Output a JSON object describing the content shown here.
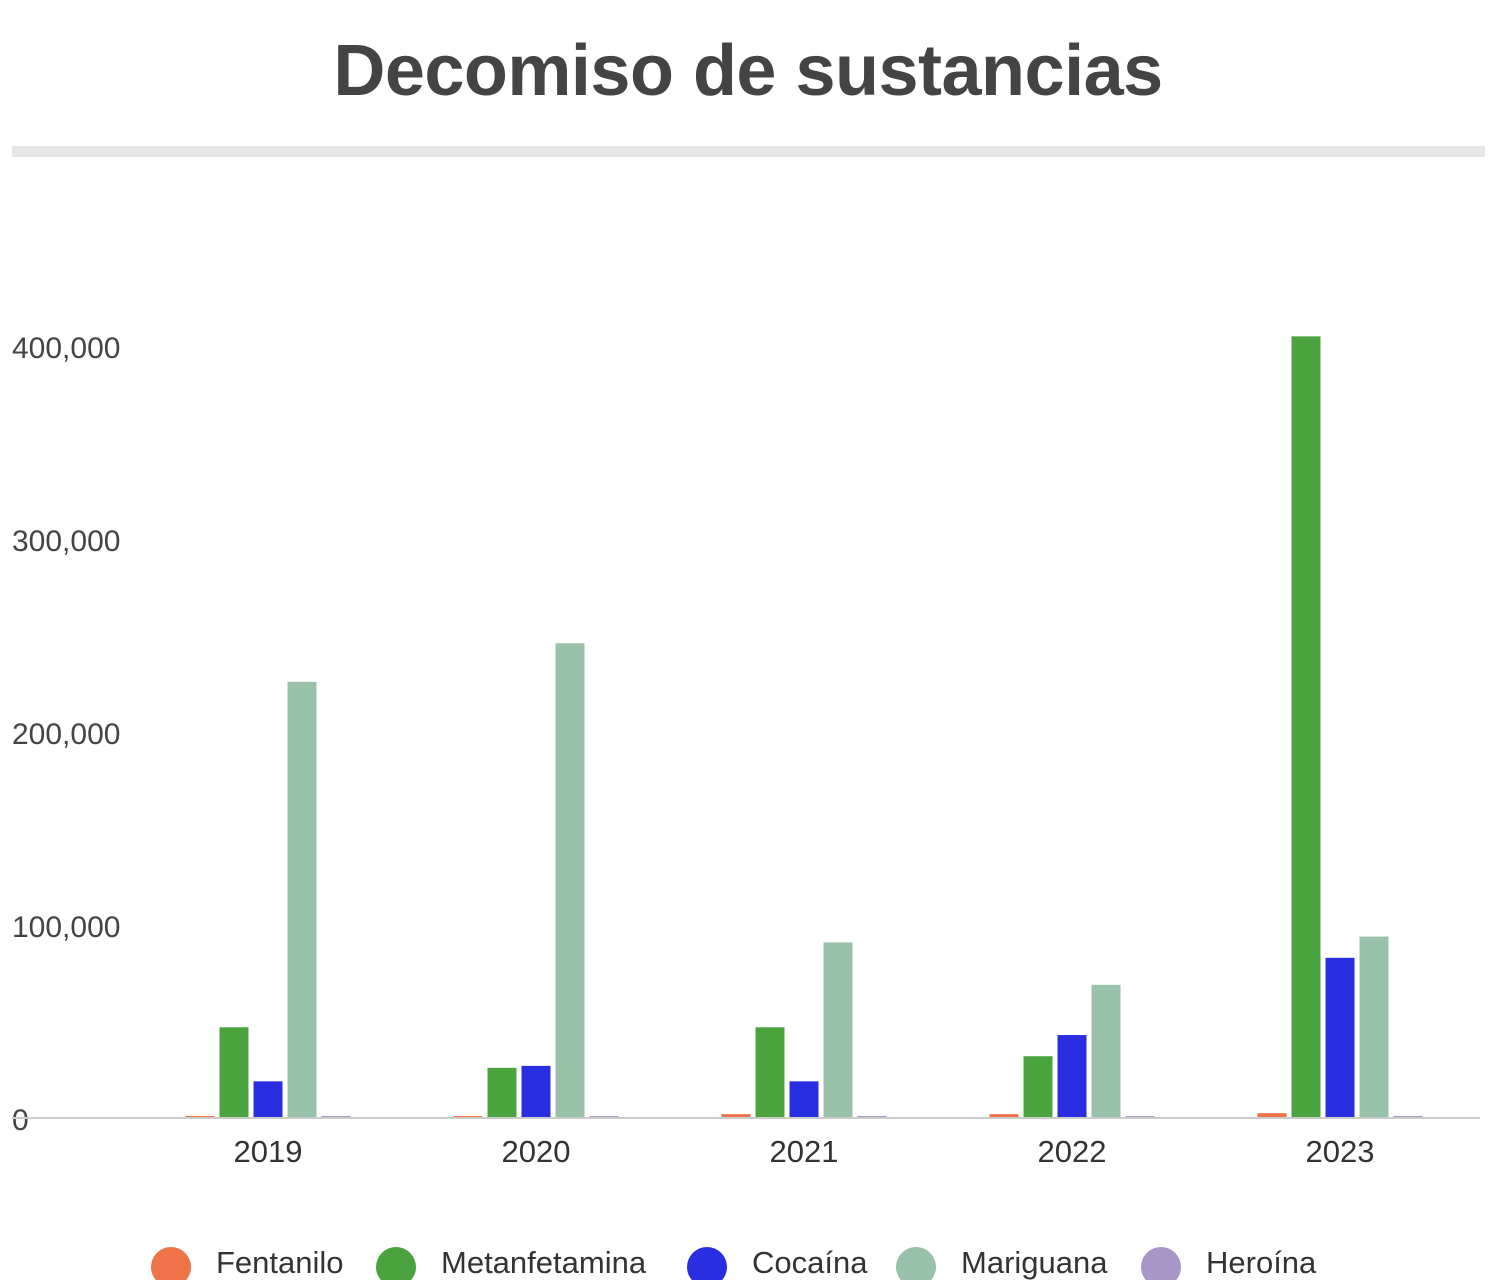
{
  "chart_data": {
    "type": "bar",
    "title": "Decomiso de sustancias",
    "xlabel": "",
    "ylabel": "",
    "categories": [
      "2019",
      "2020",
      "2021",
      "2022",
      "2023"
    ],
    "ylim": [
      0,
      400000
    ],
    "yticks": [
      0,
      100000,
      200000,
      300000,
      400000
    ],
    "ytick_labels": [
      "0",
      "100,000",
      "200,000",
      "300,000",
      "400,000"
    ],
    "grid": false,
    "legend_position": "bottom",
    "series": [
      {
        "name": "Fentanilo",
        "color": "#ee7349",
        "values": [
          500,
          1000,
          2000,
          2000,
          2500
        ]
      },
      {
        "name": "Metanfetamina",
        "color": "#4aa33e",
        "values": [
          47000,
          26000,
          47000,
          32000,
          405000
        ]
      },
      {
        "name": "Cocaína",
        "color": "#2a2ee1",
        "values": [
          19000,
          27000,
          19000,
          43000,
          83000
        ]
      },
      {
        "name": "Mariguana",
        "color": "#9ac2ab",
        "values": [
          226000,
          246000,
          91000,
          69000,
          94000
        ]
      },
      {
        "name": "Heroína",
        "color": "#a796c6",
        "values": [
          400,
          400,
          400,
          300,
          300
        ]
      }
    ]
  }
}
